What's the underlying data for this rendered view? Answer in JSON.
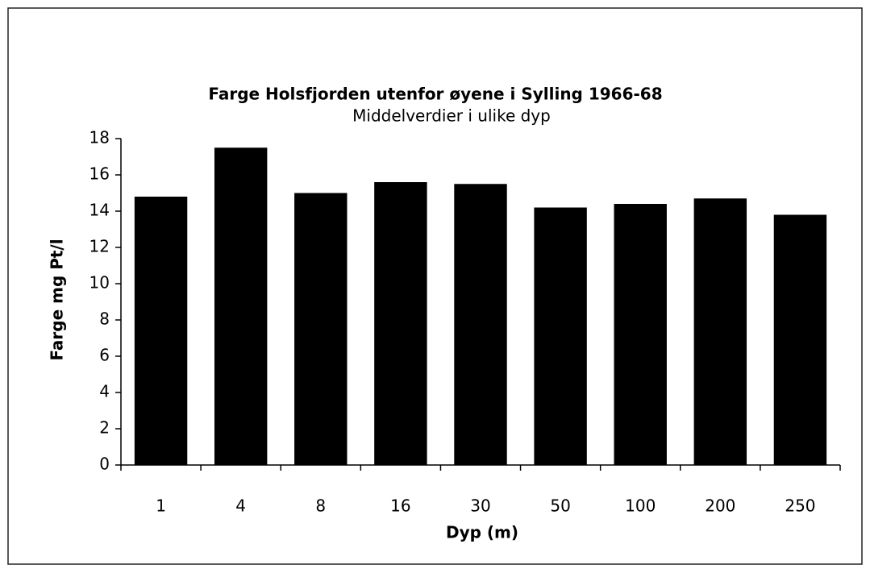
{
  "chart_data": {
    "type": "bar",
    "title": "Farge Holsfjorden utenfor øyene i Sylling 1966-68",
    "subtitle": "Middelverdier i ulike dyp",
    "x_label": "Dyp (m)",
    "y_label": "Farge mg Pt/l",
    "categories": [
      "1",
      "4",
      "8",
      "16",
      "30",
      "50",
      "100",
      "200",
      "250"
    ],
    "values": [
      14.8,
      17.5,
      15.0,
      15.6,
      15.5,
      14.2,
      14.4,
      14.7,
      13.8
    ],
    "color": "#000000",
    "ylim": [
      0,
      18
    ],
    "yticks": [
      0,
      2,
      4,
      6,
      8,
      10,
      12,
      14,
      16,
      18
    ],
    "grid": false
  }
}
